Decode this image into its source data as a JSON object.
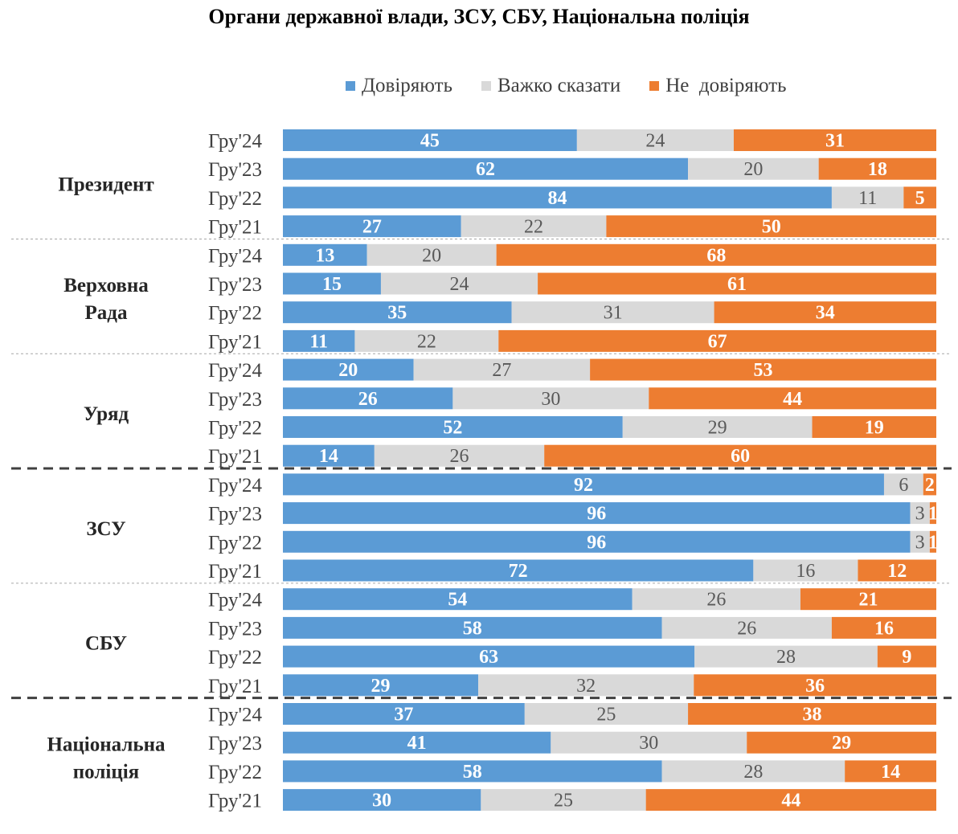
{
  "chart_data": {
    "type": "bar",
    "orientation": "horizontal-stacked-100",
    "title": "Органи державної влади, ЗСУ, СБУ, Національна поліція",
    "legend": [
      {
        "name": "Довіряють",
        "color": "#5B9BD5"
      },
      {
        "name": "Важко сказати",
        "color": "#D9D9D9"
      },
      {
        "name": "Не  довіряють",
        "color": "#ED7D31"
      }
    ],
    "legend_position": "top",
    "groups": [
      {
        "label": "Президент",
        "rows": [
          {
            "period": "Гру'24",
            "values": [
              45,
              24,
              31
            ]
          },
          {
            "period": "Гру'23",
            "values": [
              62,
              20,
              18
            ]
          },
          {
            "period": "Гру'22",
            "values": [
              84,
              11,
              5
            ]
          },
          {
            "period": "Гру'21",
            "values": [
              27,
              22,
              50
            ]
          }
        ]
      },
      {
        "label": "Верховна Рада",
        "rows": [
          {
            "period": "Гру'24",
            "values": [
              13,
              20,
              68
            ]
          },
          {
            "period": "Гру'23",
            "values": [
              15,
              24,
              61
            ]
          },
          {
            "period": "Гру'22",
            "values": [
              35,
              31,
              34
            ]
          },
          {
            "period": "Гру'21",
            "values": [
              11,
              22,
              67
            ]
          }
        ]
      },
      {
        "label": "Уряд",
        "rows": [
          {
            "period": "Гру'24",
            "values": [
              20,
              27,
              53
            ]
          },
          {
            "period": "Гру'23",
            "values": [
              26,
              30,
              44
            ]
          },
          {
            "period": "Гру'22",
            "values": [
              52,
              29,
              19
            ]
          },
          {
            "period": "Гру'21",
            "values": [
              14,
              26,
              60
            ]
          }
        ]
      },
      {
        "label": "ЗСУ",
        "rows": [
          {
            "period": "Гру'24",
            "values": [
              92,
              6,
              2
            ]
          },
          {
            "period": "Гру'23",
            "values": [
              96,
              3,
              1
            ]
          },
          {
            "period": "Гру'22",
            "values": [
              96,
              3,
              1
            ]
          },
          {
            "period": "Гру'21",
            "values": [
              72,
              16,
              12
            ]
          }
        ]
      },
      {
        "label": "СБУ",
        "rows": [
          {
            "period": "Гру'24",
            "values": [
              54,
              26,
              21
            ]
          },
          {
            "period": "Гру'23",
            "values": [
              58,
              26,
              16
            ]
          },
          {
            "period": "Гру'22",
            "values": [
              63,
              28,
              9
            ]
          },
          {
            "period": "Гру'21",
            "values": [
              29,
              32,
              36
            ]
          }
        ]
      },
      {
        "label": "Національна поліція",
        "rows": [
          {
            "period": "Гру'24",
            "values": [
              37,
              25,
              38
            ]
          },
          {
            "period": "Гру'23",
            "values": [
              41,
              30,
              29
            ]
          },
          {
            "period": "Гру'22",
            "values": [
              58,
              28,
              14
            ]
          },
          {
            "period": "Гру'21",
            "values": [
              30,
              25,
              44
            ]
          }
        ]
      }
    ],
    "separators": [
      "dotted",
      "dotted",
      "dashed",
      "dotted",
      "dashed"
    ]
  }
}
